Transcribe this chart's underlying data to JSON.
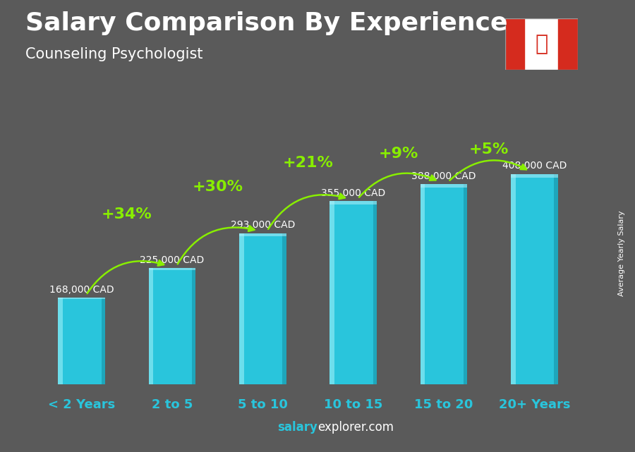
{
  "title": "Salary Comparison By Experience",
  "subtitle": "Counseling Psychologist",
  "categories": [
    "< 2 Years",
    "2 to 5",
    "5 to 10",
    "10 to 15",
    "15 to 20",
    "20+ Years"
  ],
  "values": [
    168000,
    225000,
    293000,
    355000,
    388000,
    408000
  ],
  "salary_labels": [
    "168,000 CAD",
    "225,000 CAD",
    "293,000 CAD",
    "355,000 CAD",
    "388,000 CAD",
    "408,000 CAD"
  ],
  "pct_labels": [
    "+34%",
    "+30%",
    "+21%",
    "+9%",
    "+5%"
  ],
  "bar_color_main": "#29c5dc",
  "bar_color_light": "#7ae3f0",
  "bar_color_dark": "#1a9aad",
  "bar_color_top": "#b0f0f8",
  "background_color": "#5a5a5a",
  "title_color": "#ffffff",
  "subtitle_color": "#ffffff",
  "salary_label_color": "#ffffff",
  "pct_color": "#88ee00",
  "xlabel_color": "#29c5dc",
  "ylabel_text": "Average Yearly Salary",
  "footer_salary": "salary",
  "footer_rest": "explorer.com",
  "ylim": [
    0,
    500000
  ],
  "bar_width": 0.52,
  "cat_label_fontsize": 13,
  "title_fontsize": 26,
  "subtitle_fontsize": 15,
  "salary_fontsize": 10,
  "pct_fontsize": 16
}
